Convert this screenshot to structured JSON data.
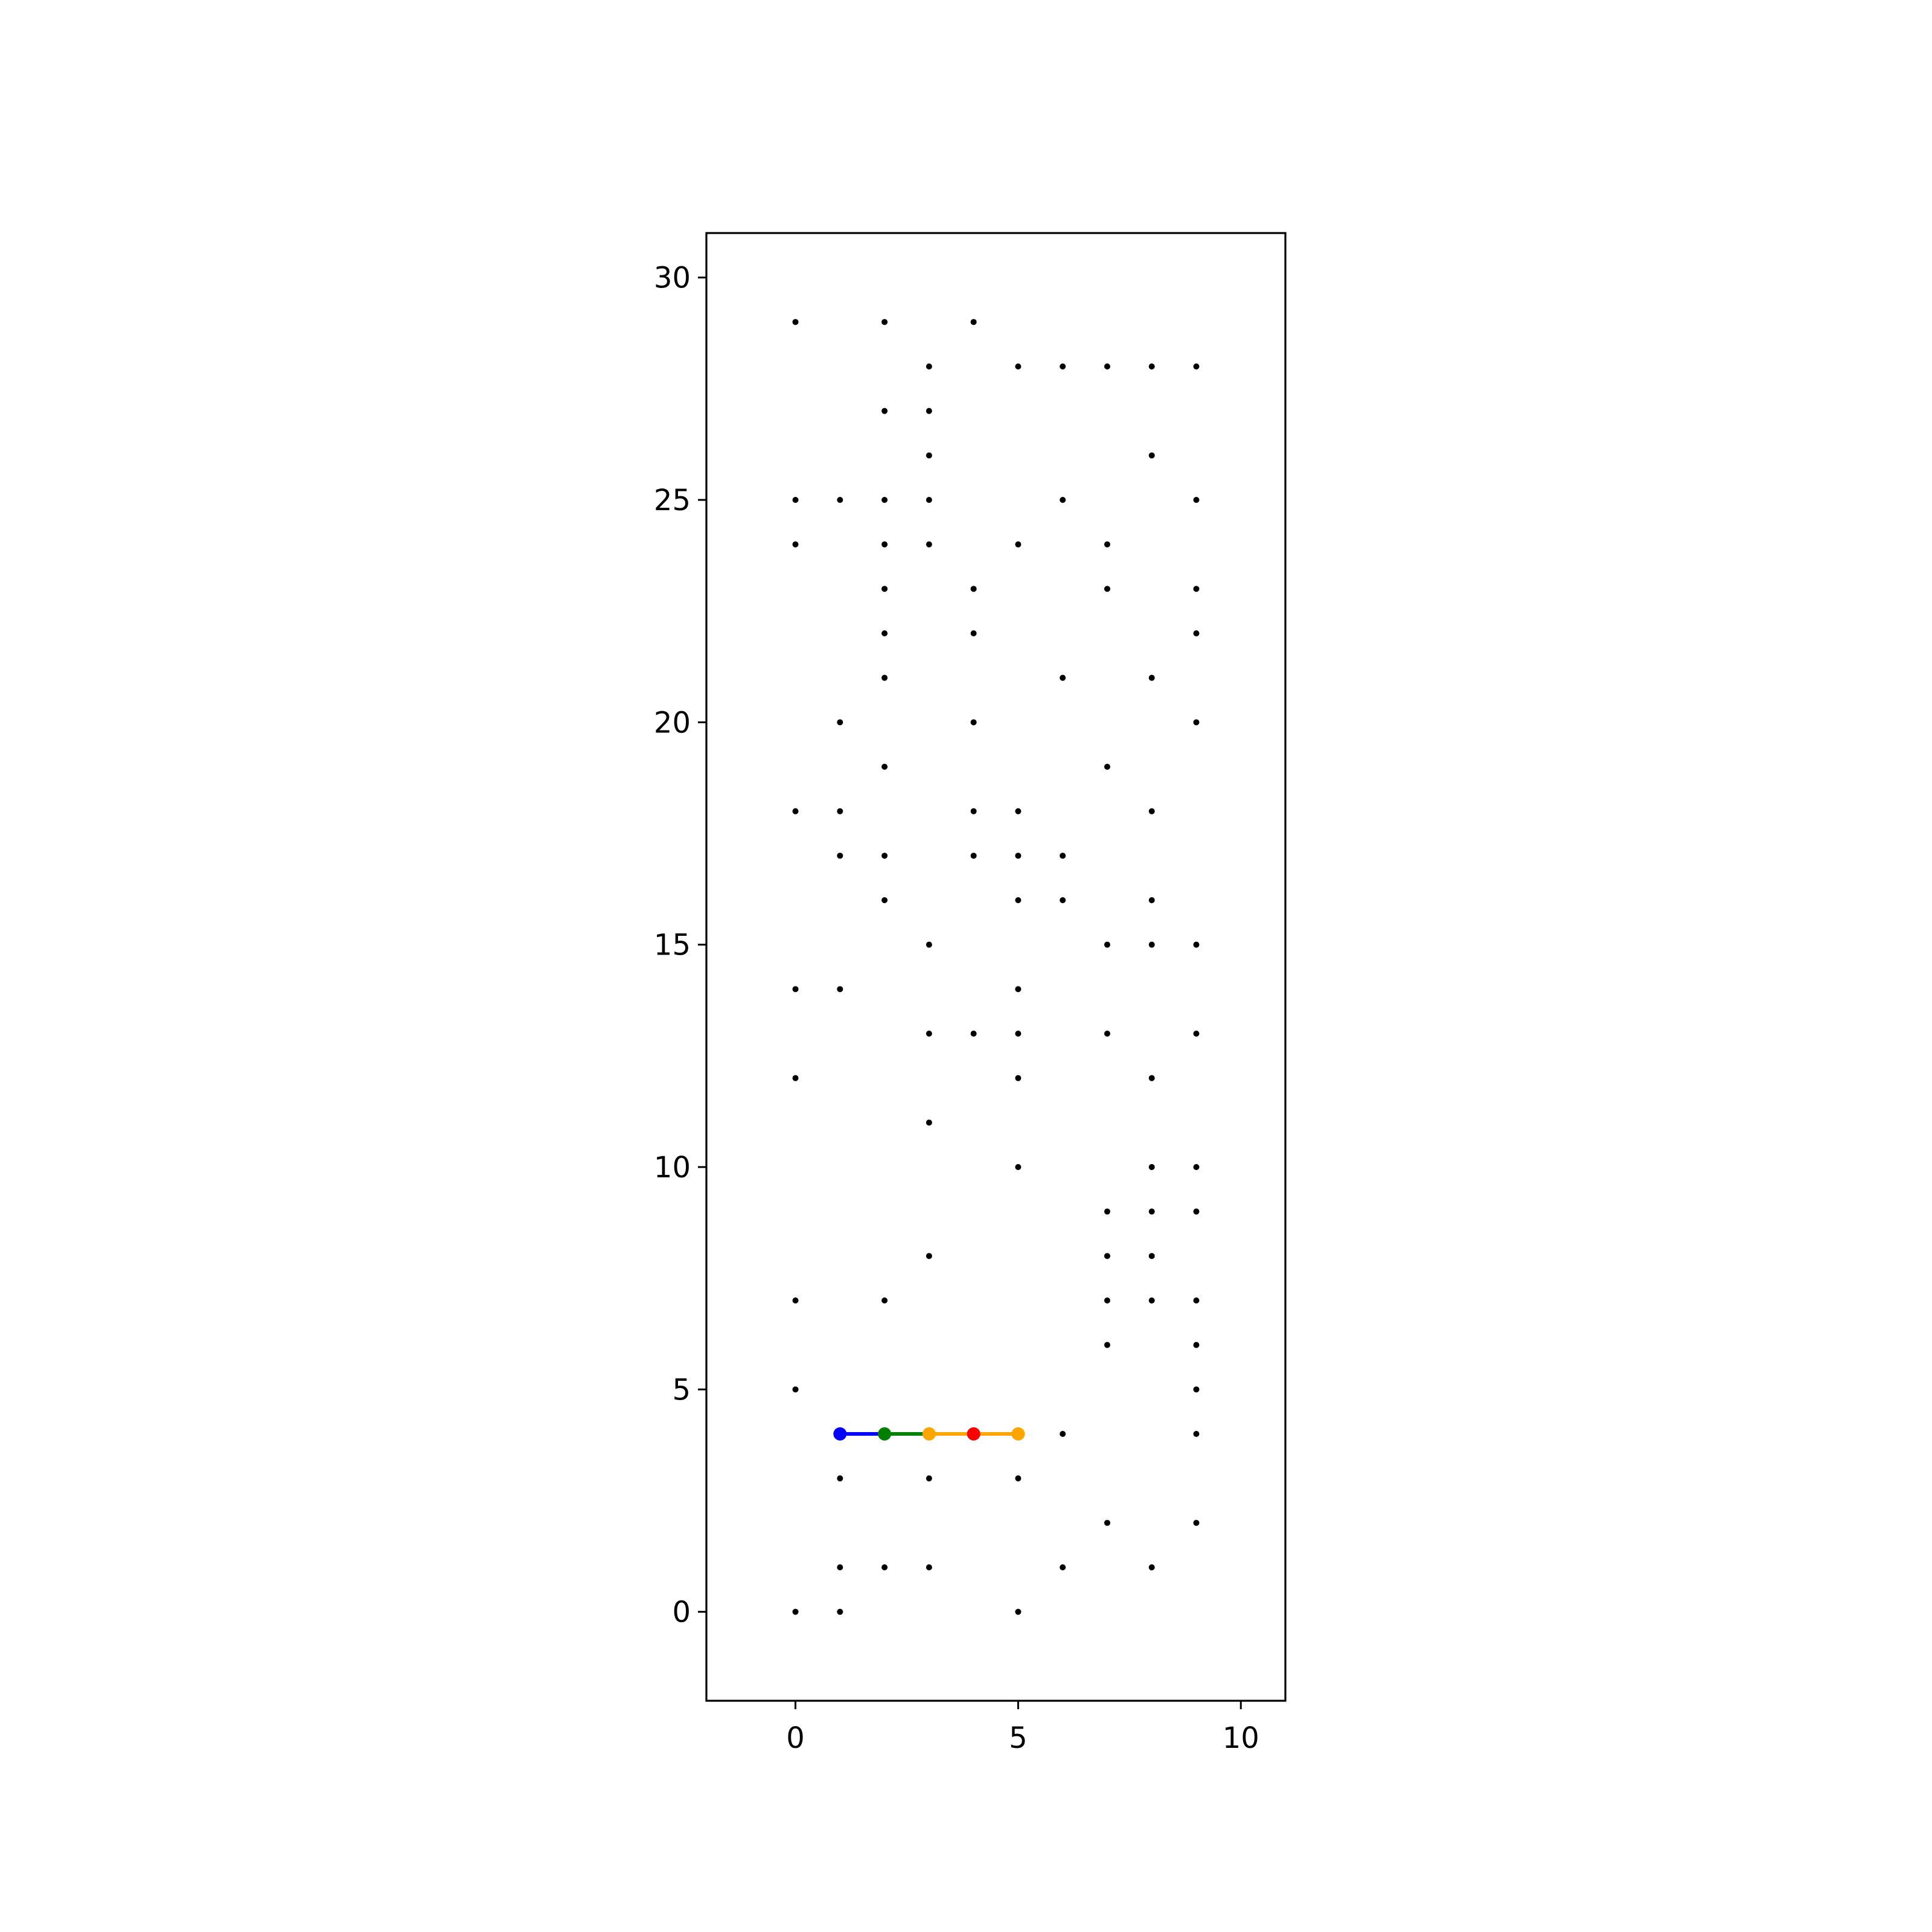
{
  "chart_data": {
    "type": "scatter",
    "title": "",
    "xlabel": "",
    "ylabel": "",
    "xlim": [
      -2,
      11
    ],
    "ylim": [
      -2,
      31
    ],
    "x_ticks": [
      0,
      5,
      10
    ],
    "y_ticks": [
      0,
      5,
      10,
      15,
      20,
      25,
      30
    ],
    "grid": false,
    "legend": "none",
    "points": [
      [
        0,
        29
      ],
      [
        2,
        29
      ],
      [
        4,
        29
      ],
      [
        3,
        28
      ],
      [
        5,
        28
      ],
      [
        6,
        28
      ],
      [
        7,
        28
      ],
      [
        8,
        28
      ],
      [
        9,
        28
      ],
      [
        2,
        27
      ],
      [
        3,
        27
      ],
      [
        3,
        26
      ],
      [
        8,
        26
      ],
      [
        0,
        25
      ],
      [
        1,
        25
      ],
      [
        2,
        25
      ],
      [
        3,
        25
      ],
      [
        6,
        25
      ],
      [
        9,
        25
      ],
      [
        0,
        24
      ],
      [
        2,
        24
      ],
      [
        3,
        24
      ],
      [
        5,
        24
      ],
      [
        7,
        24
      ],
      [
        2,
        23
      ],
      [
        4,
        23
      ],
      [
        7,
        23
      ],
      [
        9,
        23
      ],
      [
        2,
        22
      ],
      [
        4,
        22
      ],
      [
        9,
        22
      ],
      [
        2,
        21
      ],
      [
        6,
        21
      ],
      [
        8,
        21
      ],
      [
        1,
        20
      ],
      [
        4,
        20
      ],
      [
        9,
        20
      ],
      [
        2,
        19
      ],
      [
        7,
        19
      ],
      [
        0,
        18
      ],
      [
        1,
        18
      ],
      [
        4,
        18
      ],
      [
        5,
        18
      ],
      [
        8,
        18
      ],
      [
        1,
        17
      ],
      [
        2,
        17
      ],
      [
        4,
        17
      ],
      [
        5,
        17
      ],
      [
        6,
        17
      ],
      [
        2,
        16
      ],
      [
        5,
        16
      ],
      [
        6,
        16
      ],
      [
        8,
        16
      ],
      [
        3,
        15
      ],
      [
        7,
        15
      ],
      [
        8,
        15
      ],
      [
        9,
        15
      ],
      [
        0,
        14
      ],
      [
        1,
        14
      ],
      [
        5,
        14
      ],
      [
        3,
        13
      ],
      [
        4,
        13
      ],
      [
        5,
        13
      ],
      [
        7,
        13
      ],
      [
        9,
        13
      ],
      [
        0,
        12
      ],
      [
        5,
        12
      ],
      [
        8,
        12
      ],
      [
        3,
        11
      ],
      [
        5,
        10
      ],
      [
        8,
        10
      ],
      [
        9,
        10
      ],
      [
        7,
        9
      ],
      [
        8,
        9
      ],
      [
        9,
        9
      ],
      [
        3,
        8
      ],
      [
        7,
        8
      ],
      [
        8,
        8
      ],
      [
        0,
        7
      ],
      [
        2,
        7
      ],
      [
        7,
        7
      ],
      [
        8,
        7
      ],
      [
        9,
        7
      ],
      [
        7,
        6
      ],
      [
        9,
        6
      ],
      [
        0,
        5
      ],
      [
        9,
        5
      ],
      [
        6,
        4
      ],
      [
        9,
        4
      ],
      [
        1,
        3
      ],
      [
        3,
        3
      ],
      [
        5,
        3
      ],
      [
        7,
        2
      ],
      [
        9,
        2
      ],
      [
        1,
        1
      ],
      [
        2,
        1
      ],
      [
        3,
        1
      ],
      [
        6,
        1
      ],
      [
        8,
        1
      ],
      [
        0,
        0
      ],
      [
        1,
        0
      ],
      [
        5,
        0
      ]
    ],
    "path_segments": [
      {
        "from": [
          1,
          4
        ],
        "to": [
          2,
          4
        ],
        "color": "#0000ff"
      },
      {
        "from": [
          2,
          4
        ],
        "to": [
          3,
          4
        ],
        "color": "#008000"
      },
      {
        "from": [
          3,
          4
        ],
        "to": [
          5,
          4
        ],
        "color": "#ffa500"
      }
    ],
    "path_markers": [
      {
        "x": 1,
        "y": 4,
        "color": "#0000ff"
      },
      {
        "x": 2,
        "y": 4,
        "color": "#008000"
      },
      {
        "x": 3,
        "y": 4,
        "color": "#ffa500"
      },
      {
        "x": 4,
        "y": 4,
        "color": "#ff0000"
      },
      {
        "x": 5,
        "y": 4,
        "color": "#ffa500"
      }
    ],
    "colors": {
      "points": "#000000",
      "axes": "#000000",
      "background": "#ffffff"
    }
  }
}
